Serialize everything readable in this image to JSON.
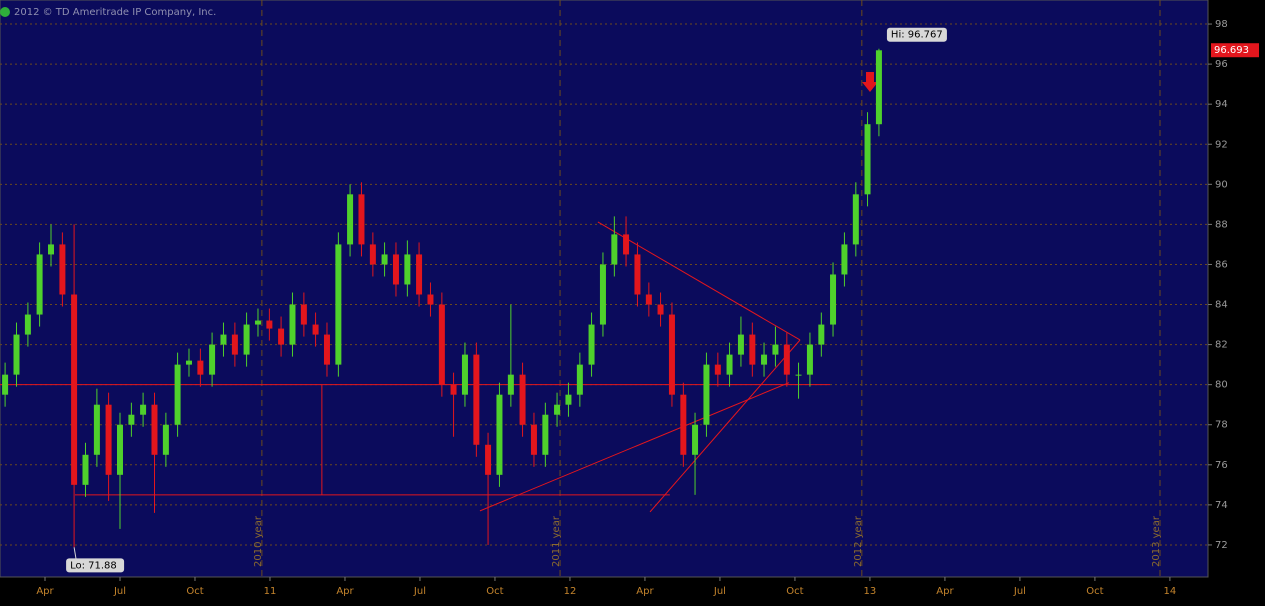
{
  "chart_data": {
    "type": "candlestick",
    "copyright": "2012 © TD Ameritrade IP Company, Inc.",
    "x": [
      2010.117,
      2010.155,
      2010.193,
      2010.232,
      2010.27,
      2010.308,
      2010.347,
      2010.385,
      2010.423,
      2010.462,
      2010.5,
      2010.538,
      2010.577,
      2010.615,
      2010.653,
      2010.692,
      2010.73,
      2010.768,
      2010.807,
      2010.845,
      2010.883,
      2010.922,
      2010.96,
      2010.998,
      2011.037,
      2011.075,
      2011.113,
      2011.152,
      2011.19,
      2011.228,
      2011.267,
      2011.305,
      2011.343,
      2011.382,
      2011.42,
      2011.458,
      2011.497,
      2011.535,
      2011.573,
      2011.612,
      2011.65,
      2011.688,
      2011.727,
      2011.765,
      2011.803,
      2011.842,
      2011.88,
      2011.918,
      2011.957,
      2011.995,
      2012.033,
      2012.072,
      2012.11,
      2012.148,
      2012.187,
      2012.225,
      2012.263,
      2012.302,
      2012.34,
      2012.378,
      2012.417,
      2012.455,
      2012.493,
      2012.532,
      2012.57,
      2012.608,
      2012.647,
      2012.685,
      2012.723,
      2012.762,
      2012.8,
      2012.838,
      2012.877,
      2012.915,
      2012.953,
      2012.992,
      2013.03
    ],
    "open": [
      79.5,
      80.5,
      82.5,
      83.5,
      86.5,
      87,
      84.5,
      75,
      76.5,
      79,
      75.5,
      78,
      78.5,
      79,
      76.5,
      78,
      81,
      81.2,
      80.5,
      82,
      82.5,
      81.5,
      83,
      83.2,
      82.8,
      82,
      84,
      83,
      82.5,
      81,
      87,
      89.5,
      87,
      86,
      86.5,
      85,
      86.5,
      84.5,
      84,
      80,
      79.5,
      81.5,
      77,
      75.5,
      79.5,
      80.5,
      78,
      76.5,
      78.5,
      79,
      79.5,
      81,
      83,
      86,
      87.5,
      86.5,
      84.5,
      84,
      83.5,
      79.5,
      76.5,
      78,
      81,
      80.5,
      81.5,
      82.5,
      81,
      81.5,
      82,
      80.5,
      80.5,
      82,
      83,
      85.5,
      87,
      89.5,
      93
    ],
    "high": [
      81.1,
      83.1,
      84.1,
      87.1,
      88,
      87.6,
      88,
      77.1,
      79.8,
      79.6,
      78.6,
      79.1,
      79.6,
      79.6,
      78.6,
      81.6,
      81.8,
      81.8,
      82.6,
      83.1,
      83.1,
      83.6,
      83.8,
      83.8,
      83.4,
      84.6,
      84.6,
      83.6,
      83.1,
      87.6,
      90,
      90.1,
      87.6,
      87.1,
      87.1,
      87.2,
      87.1,
      85.1,
      84.6,
      80.6,
      82.1,
      82.1,
      77.6,
      80.1,
      84,
      81.1,
      78.6,
      79.1,
      79.6,
      80.1,
      81.6,
      83.6,
      86.6,
      88.4,
      88.4,
      87.1,
      85.1,
      84.6,
      84.1,
      80.1,
      78.6,
      81.6,
      81.6,
      82.1,
      83.4,
      83.1,
      82.1,
      82.9,
      82.6,
      81.1,
      82.6,
      83.6,
      86.1,
      87.6,
      90.1,
      93.6,
      96.767
    ],
    "low": [
      78.9,
      79.9,
      81.9,
      82.9,
      85.9,
      83.9,
      71.88,
      74.4,
      75.9,
      74.2,
      72.8,
      77.4,
      77.9,
      73.6,
      75.9,
      77.4,
      80.4,
      79.9,
      79.9,
      81.4,
      80.9,
      80.9,
      82.4,
      82.2,
      81.4,
      81.4,
      82.4,
      81.9,
      80.4,
      80.4,
      86.4,
      86.4,
      85.4,
      85.4,
      84.4,
      84.4,
      83.9,
      83.4,
      79.4,
      77.4,
      78.9,
      76.4,
      72,
      74.9,
      78.9,
      77.4,
      75.9,
      75.9,
      77.9,
      78.4,
      78.9,
      80.4,
      82.4,
      85.4,
      85.9,
      83.9,
      83.4,
      82.9,
      78.9,
      75.9,
      74.5,
      77.4,
      79.9,
      79.9,
      80.9,
      80.4,
      80.4,
      80.9,
      79.9,
      79.3,
      79.9,
      81.4,
      82.4,
      84.9,
      86.4,
      88.9,
      92.4
    ],
    "close": [
      80.5,
      82.5,
      83.5,
      86.5,
      87,
      84.5,
      75,
      76.5,
      79,
      75.5,
      78,
      78.5,
      79,
      76.5,
      78,
      81,
      81.2,
      80.5,
      82,
      82.5,
      81.5,
      83,
      83.2,
      82.8,
      82,
      84,
      83,
      82.5,
      81,
      87,
      89.5,
      87,
      86,
      86.5,
      85,
      86.5,
      84.5,
      84,
      80,
      79.5,
      81.5,
      77,
      75.5,
      79.5,
      80.5,
      78,
      76.5,
      78.5,
      79,
      79.5,
      81,
      83,
      86,
      87.5,
      86.5,
      84.5,
      84,
      83.5,
      79.5,
      76.5,
      78,
      81,
      80.5,
      81.5,
      82.5,
      81,
      81.5,
      82,
      80.5,
      80.5,
      82,
      83,
      85.5,
      87,
      89.5,
      93,
      96.69
    ],
    "up_color": "#4fd12c",
    "down_color": "#e3161d",
    "xlim": [
      2010.1,
      2014.127
    ],
    "ylim": [
      70.4,
      99.2
    ],
    "xticks": [
      {
        "value": 2010.25,
        "label": "Apr"
      },
      {
        "value": 2010.5,
        "label": "Jul"
      },
      {
        "value": 2010.75,
        "label": "Oct"
      },
      {
        "value": 2011,
        "label": "11"
      },
      {
        "value": 2011.25,
        "label": "Apr"
      },
      {
        "value": 2011.5,
        "label": "Jul"
      },
      {
        "value": 2011.75,
        "label": "Oct"
      },
      {
        "value": 2012,
        "label": "12"
      },
      {
        "value": 2012.25,
        "label": "Apr"
      },
      {
        "value": 2012.5,
        "label": "Jul"
      },
      {
        "value": 2012.75,
        "label": "Oct"
      },
      {
        "value": 2013,
        "label": "13"
      },
      {
        "value": 2013.25,
        "label": "Apr"
      },
      {
        "value": 2013.5,
        "label": "Jul"
      },
      {
        "value": 2013.75,
        "label": "Oct"
      },
      {
        "value": 2014,
        "label": "14"
      }
    ],
    "yticks": [
      72,
      74,
      76,
      78,
      80,
      82,
      84,
      86,
      88,
      90,
      92,
      94,
      96,
      98
    ],
    "grid": true,
    "year_lines": [
      {
        "x": 2010.973,
        "label": "2010 year"
      },
      {
        "x": 2011.967,
        "label": "2011 year"
      },
      {
        "x": 2012.973,
        "label": "2012 year"
      },
      {
        "x": 2013.967,
        "label": "2013 year"
      }
    ],
    "trend_lines": [
      [
        2010.1,
        80,
        2012.867,
        80
      ],
      [
        2010.35,
        74.5,
        2012.333,
        74.5
      ],
      [
        2011.173,
        80,
        2011.173,
        74.5
      ],
      [
        2011.7,
        73.7,
        2012.73,
        80.1
      ],
      [
        2012.267,
        73.65,
        2012.767,
        82.23
      ],
      [
        2012.093,
        88.12,
        2012.767,
        82.23
      ]
    ],
    "hi_label": "Hi: 96.767",
    "lo_label": "Lo: 71.88",
    "last_price": 96.693
  }
}
